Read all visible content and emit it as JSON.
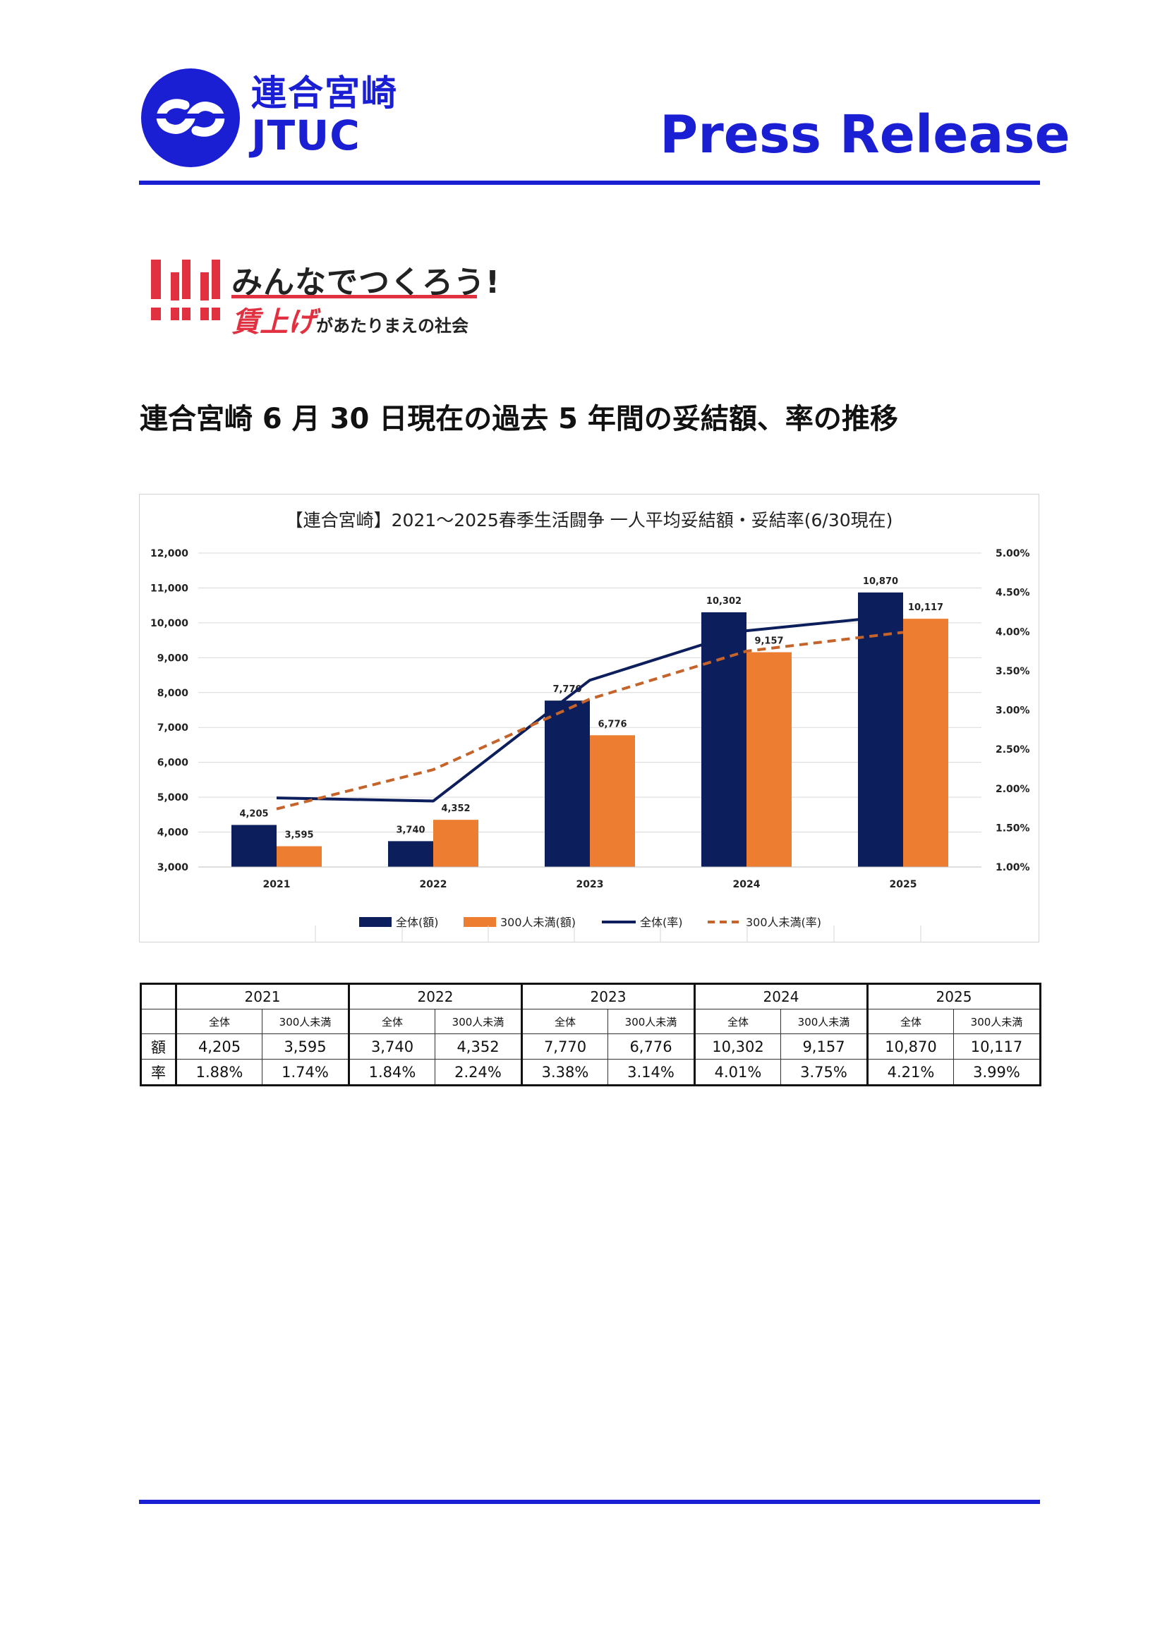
{
  "header": {
    "org_name_jp": "連合宮崎",
    "org_name_en": "JTUC",
    "release_label": "Press Release",
    "brand_color": "#1a1fd4"
  },
  "banner": {
    "line1": "みんなでつくろう!",
    "line2_emphasis": "賃上げ",
    "line2_rest": "があたりまえの社会",
    "accent_color": "#e1303f"
  },
  "heading": "連合宮崎 6 月 30 日現在の過去 5 年間の妥結額、率の推移",
  "chart_data": {
    "type": "bar",
    "title": "【連合宮崎】2021～2025春季生活闘争 一人平均妥結額・妥結率(6/30現在)",
    "categories": [
      "2021",
      "2022",
      "2023",
      "2024",
      "2025"
    ],
    "series": [
      {
        "name": "全体(額)",
        "kind": "bar",
        "axis": "left",
        "color": "#0c1f5c",
        "values": [
          4205,
          3740,
          7770,
          10302,
          10870
        ],
        "labels": [
          "4,205",
          "3,740",
          "7,770",
          "10,302",
          "10,870"
        ]
      },
      {
        "name": "300人未満(額)",
        "kind": "bar",
        "axis": "left",
        "color": "#ed7d31",
        "values": [
          3595,
          4352,
          6776,
          9157,
          10117
        ],
        "labels": [
          "3,595",
          "4,352",
          "6,776",
          "9,157",
          "10,117"
        ]
      },
      {
        "name": "全体(率)",
        "kind": "line",
        "axis": "right",
        "color": "#0c1f5c",
        "values": [
          1.88,
          1.84,
          3.38,
          4.01,
          4.21
        ]
      },
      {
        "name": "300人未満(率)",
        "kind": "dashed-line",
        "axis": "right",
        "color": "#c5642a",
        "values": [
          1.74,
          2.24,
          3.14,
          3.75,
          3.99
        ]
      }
    ],
    "y_left": {
      "min": 3000,
      "max": 12000,
      "ticks": [
        "3,000",
        "4,000",
        "5,000",
        "6,000",
        "7,000",
        "8,000",
        "9,000",
        "10,000",
        "11,000",
        "12,000"
      ]
    },
    "y_right": {
      "min": 1.0,
      "max": 5.0,
      "ticks": [
        "1.00%",
        "1.50%",
        "2.00%",
        "2.50%",
        "3.00%",
        "3.50%",
        "4.00%",
        "4.50%",
        "5.00%"
      ]
    },
    "grid": true,
    "legend": "bottom"
  },
  "table": {
    "years": [
      "2021",
      "2022",
      "2023",
      "2024",
      "2025"
    ],
    "sub_headers": [
      "全体",
      "300人未満"
    ],
    "rows": [
      {
        "label": "額",
        "values": [
          "4,205",
          "3,595",
          "3,740",
          "4,352",
          "7,770",
          "6,776",
          "10,302",
          "9,157",
          "10,870",
          "10,117"
        ]
      },
      {
        "label": "率",
        "values": [
          "1.88%",
          "1.74%",
          "1.84%",
          "2.24%",
          "3.38%",
          "3.14%",
          "4.01%",
          "3.75%",
          "4.21%",
          "3.99%"
        ]
      }
    ]
  }
}
